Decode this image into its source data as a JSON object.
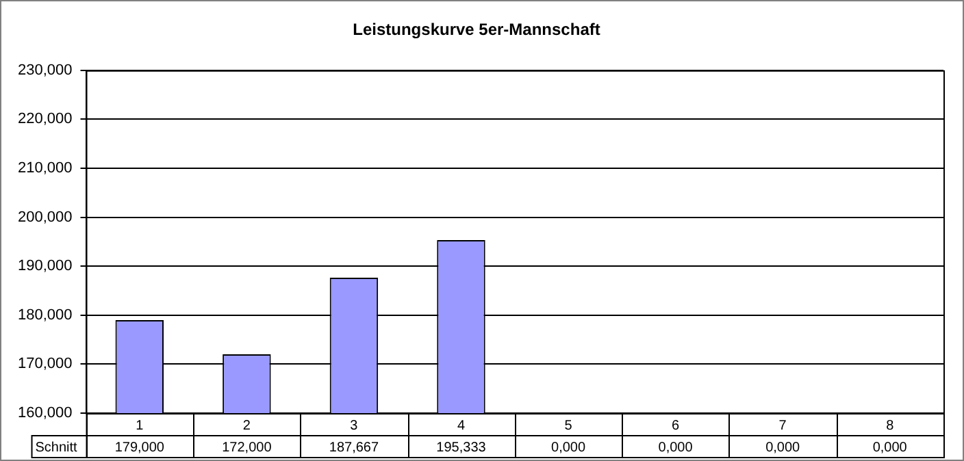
{
  "chart_data": {
    "type": "bar",
    "title": "Leistungskurve 5er-Mannschaft",
    "categories": [
      "1",
      "2",
      "3",
      "4",
      "5",
      "6",
      "7",
      "8"
    ],
    "series": [
      {
        "name": "Schnitt",
        "color": "#9999ff",
        "values": [
          179,
          172,
          187.667,
          195.333,
          null,
          null,
          null,
          null
        ],
        "value_labels": [
          "179,000",
          "172,000",
          "187,667",
          "195,333",
          "0,000",
          "0,000",
          "0,000",
          "0,000"
        ]
      }
    ],
    "ylim": [
      160,
      230
    ],
    "yticks": [
      {
        "value": 160,
        "label": "160,000"
      },
      {
        "value": 170,
        "label": "170,000"
      },
      {
        "value": 180,
        "label": "180,000"
      },
      {
        "value": 190,
        "label": "190,000"
      },
      {
        "value": 200,
        "label": "200,000"
      },
      {
        "value": 210,
        "label": "210,000"
      },
      {
        "value": 220,
        "label": "220,000"
      },
      {
        "value": 230,
        "label": "230,000"
      }
    ],
    "grid": "y",
    "legend": false
  }
}
